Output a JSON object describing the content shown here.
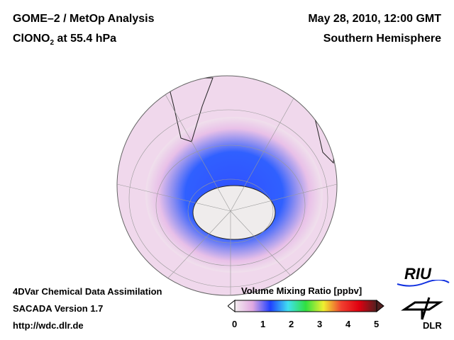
{
  "header": {
    "title": "GOME–2 / MetOp Analysis",
    "species": "ClONO",
    "species_sub": "2",
    "species_rest": " at 55.4 hPa",
    "date": "May 28, 2010, 12:00 GMT",
    "region": "Southern Hemisphere"
  },
  "footer": {
    "line1": "4DVar Chemical Data Assimilation",
    "line2": "SACADA Version 1.7",
    "line3": "http://wdc.dlr.de"
  },
  "colorbar": {
    "title": "Volume Mixing Ratio [ppbv]",
    "ticks": [
      "0",
      "1",
      "2",
      "3",
      "4",
      "5"
    ],
    "colors": [
      "#f4eef0",
      "#e0a8e0",
      "#2040ff",
      "#40e0f0",
      "#30e040",
      "#f0f030",
      "#f04030",
      "#e00010",
      "#502020"
    ]
  },
  "logos": {
    "riu": "RIU",
    "dlr": "DLR"
  }
}
